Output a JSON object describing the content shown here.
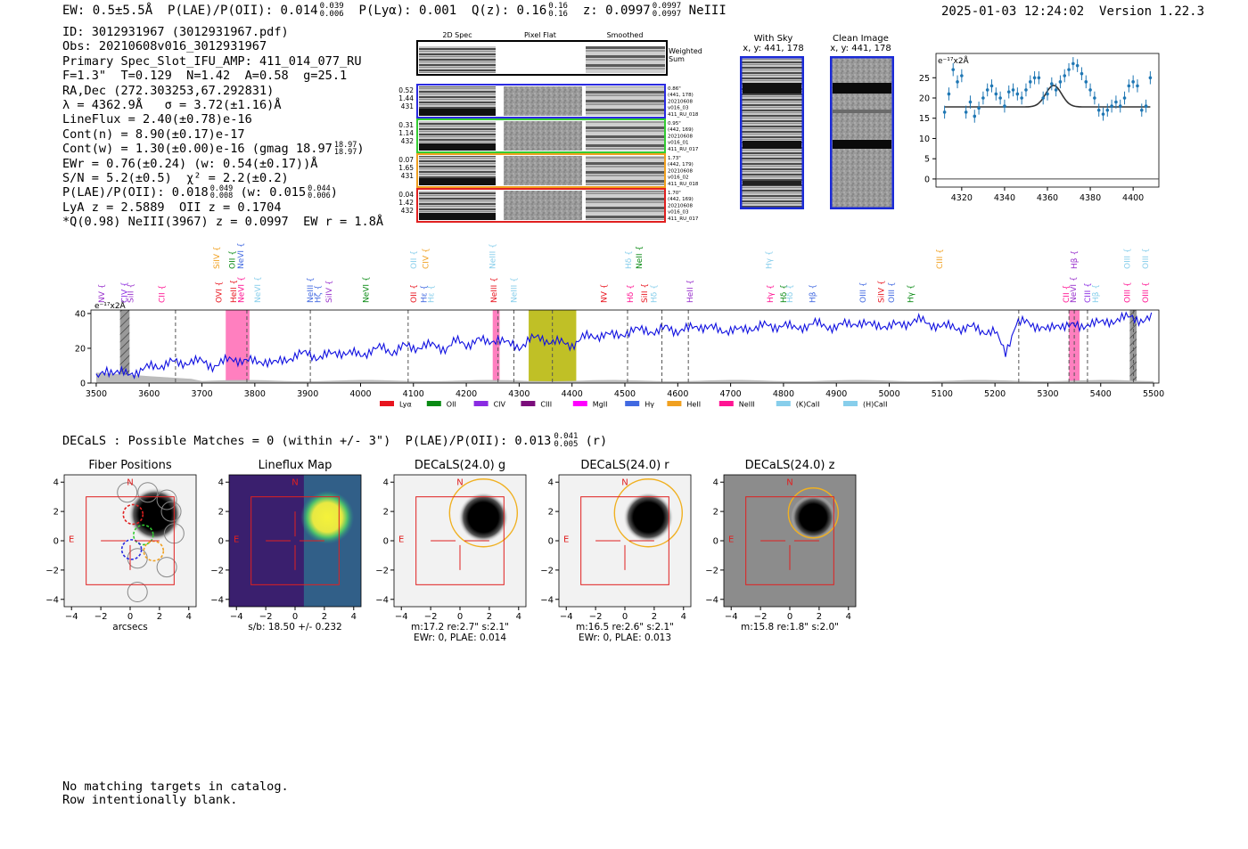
{
  "header": {
    "ew": "EW: 0.5±5.5Å",
    "plae_label": "P(LAE)/P(OII): 0.014",
    "plae_hi": "0.039",
    "plae_lo": "0.006",
    "plya": "P(Lyα): 0.001",
    "q_label": "Q(z): 0.16",
    "q_hi": "0.16",
    "q_lo": "0.16",
    "z_label": "z: 0.0997",
    "z_hi": "0.0997",
    "z_lo": "0.0997",
    "line": "NeIII",
    "timestamp": "2025-01-03 12:24:02",
    "version": "Version 1.22.3"
  },
  "info": {
    "id": "ID: 3012931967 (3012931967.pdf)",
    "obs": "Obs: 20210608v016_3012931967",
    "slot": "Primary Spec_Slot_IFU_AMP: 411_014_077_RU",
    "fwhm": "F=1.3\"  T=0.129  N=1.42  A=0.58  g=25.1",
    "radec": "RA,Dec (272.303253,67.292831)",
    "lambda": "λ = 4362.9Å   σ = 3.72(±1.16)Å",
    "lineflux": "LineFlux = 2.40(±0.78)e-16",
    "contn": "Cont(n) = 8.90(±0.17)e-17",
    "contw": "Cont(w) = 1.30(±0.00)e-16 (gmag 18.97",
    "gmag_hi": "18.97",
    "gmag_lo": "18.97",
    "contw_end": ")",
    "ewr": "EWr = 0.76(±0.24) (w: 0.54(±0.17))Å",
    "sn": "S/N = 5.2(±0.5)  χ² = 2.2(±0.2)",
    "plae": "P(LAE)/P(OII): 0.018",
    "plae_hi": "0.049",
    "plae_lo": "0.008",
    "plae_w": "(w: 0.015",
    "plae_w_hi": "0.044",
    "plae_w_lo": "0.006",
    "plae_end": ")",
    "lya": "LyA z = 2.5889  OII z = 0.1704",
    "q": "*Q(0.98) NeIII(3967) z = 0.0997  EW r = 1.8Å"
  },
  "cutouts": {
    "col_titles": [
      "2D Spec",
      "Pixel Flat",
      "Smoothed"
    ],
    "weighted_sum_label": "Weighted Sum",
    "rows": [
      {
        "color": "#2a2ae0",
        "left": [
          "0.52",
          "1.44",
          "431"
        ],
        "right": [
          "0.86\"",
          "(441, 178)",
          "20210608",
          "v016_03",
          "411_RU_018"
        ]
      },
      {
        "color": "#33cc33",
        "left": [
          "0.31",
          "1.14",
          "432"
        ],
        "right": [
          "0.95\"",
          "(442, 169)",
          "20210608",
          "v016_01",
          "411_RU_017"
        ]
      },
      {
        "color": "#f0a020",
        "left": [
          "0.07",
          "1.65",
          "431"
        ],
        "right": [
          "1.73\"",
          "(442, 179)",
          "20210608",
          "v016_02",
          "411_RU_018"
        ]
      },
      {
        "color": "#e02020",
        "left": [
          "0.04",
          "1.42",
          "432"
        ],
        "right": [
          "1.70\"",
          "(442, 169)",
          "20210608",
          "v016_03",
          "411_RU_017"
        ]
      }
    ]
  },
  "sky": {
    "with_sky_title": "With Sky",
    "with_sky_xy": "x, y: 441, 178",
    "clean_title": "Clean Image",
    "clean_xy": "x, y: 441, 178"
  },
  "zoom_chart": {
    "unit": "e⁻¹⁷x2Å",
    "x_ticks": [
      "4320",
      "4340",
      "4360",
      "4380",
      "4400"
    ],
    "y_ticks": [
      "0",
      "5",
      "10",
      "15",
      "20",
      "25"
    ]
  },
  "full_spectrum": {
    "unit": "e⁻¹⁷x2Å",
    "x_ticks": [
      "3500",
      "3600",
      "3700",
      "3800",
      "3900",
      "4000",
      "4100",
      "4200",
      "4300",
      "4400",
      "4500",
      "4600",
      "4700",
      "4800",
      "4900",
      "5000",
      "5100",
      "5200",
      "5300",
      "5400",
      "5500"
    ],
    "y_ticks": [
      "0",
      "20",
      "40"
    ],
    "legend": [
      {
        "label": "Lyα",
        "color": "#e8141e"
      },
      {
        "label": "OII",
        "color": "#0a8a14"
      },
      {
        "label": "CIV",
        "color": "#8a2be2"
      },
      {
        "label": "CIII",
        "color": "#7b0d7b"
      },
      {
        "label": "MgII",
        "color": "#ff00ff"
      },
      {
        "label": "Hγ",
        "color": "#4169e1"
      },
      {
        "label": "HeII",
        "color": "#f0a020"
      },
      {
        "label": "NeIII",
        "color": "#ff1493"
      },
      {
        "label": "(K)CaII",
        "color": "#87ceeb"
      },
      {
        "label": "(H)CaII",
        "color": "#87ceeb"
      }
    ],
    "line_labels": [
      {
        "text": "NV",
        "x": 3510,
        "row": 2,
        "color": "#9932cc"
      },
      {
        "text": "CIV",
        "x": 3553,
        "row": 2,
        "color": "#8a2be2"
      },
      {
        "text": "SiII",
        "x": 3565,
        "row": 2,
        "color": "#9932cc"
      },
      {
        "text": "CII",
        "x": 3624,
        "row": 2,
        "color": "#ff1493"
      },
      {
        "text": "SiIV",
        "x": 3728,
        "row": 0,
        "color": "#f0a020"
      },
      {
        "text": "OVI",
        "x": 3732,
        "row": 2,
        "color": "#e8141e"
      },
      {
        "text": "OII",
        "x": 3757,
        "row": 0,
        "color": "#0a8a14"
      },
      {
        "text": "HeII",
        "x": 3760,
        "row": 2,
        "color": "#e8141e"
      },
      {
        "text": "NeVI",
        "x": 3773,
        "row": 0,
        "color": "#4169e1"
      },
      {
        "text": "NeVI",
        "x": 3774,
        "row": 2,
        "color": "#ff1493"
      },
      {
        "text": "NeVI",
        "x": 3805,
        "row": 2,
        "color": "#87ceeb"
      },
      {
        "text": "NeIII",
        "x": 3905,
        "row": 2,
        "color": "#4169e1"
      },
      {
        "text": "Hζ",
        "x": 3919,
        "row": 2,
        "color": "#4169e1"
      },
      {
        "text": "SiIV",
        "x": 3940,
        "row": 2,
        "color": "#9932cc"
      },
      {
        "text": "NeVI",
        "x": 4010,
        "row": 2,
        "color": "#0a8a14"
      },
      {
        "text": "OII",
        "x": 4100,
        "row": 0,
        "color": "#87ceeb"
      },
      {
        "text": "CIV",
        "x": 4123,
        "row": 0,
        "color": "#f0a020"
      },
      {
        "text": "OII",
        "x": 4100,
        "row": 2,
        "color": "#e8141e"
      },
      {
        "text": "Hε",
        "x": 4120,
        "row": 2,
        "color": "#4169e1"
      },
      {
        "text": "Hε",
        "x": 4133,
        "row": 2,
        "color": "#87ceeb"
      },
      {
        "text": "NeIII",
        "x": 4250,
        "row": 0,
        "color": "#87ceeb"
      },
      {
        "text": "NeIII",
        "x": 4252,
        "row": 2,
        "color": "#e8141e"
      },
      {
        "text": "NeIII",
        "x": 4290,
        "row": 2,
        "color": "#87ceeb"
      },
      {
        "text": "NV",
        "x": 4460,
        "row": 2,
        "color": "#e8141e"
      },
      {
        "text": "Hδ",
        "x": 4507,
        "row": 0,
        "color": "#87ceeb"
      },
      {
        "text": "NeII",
        "x": 4527,
        "row": 0,
        "color": "#0a8a14"
      },
      {
        "text": "Hδ",
        "x": 4510,
        "row": 2,
        "color": "#ff1493"
      },
      {
        "text": "SiII",
        "x": 4537,
        "row": 2,
        "color": "#e8141e"
      },
      {
        "text": "Hδ",
        "x": 4555,
        "row": 2,
        "color": "#87ceeb"
      },
      {
        "text": "HeII",
        "x": 4623,
        "row": 2,
        "color": "#9932cc"
      },
      {
        "text": "Hγ",
        "x": 4772,
        "row": 0,
        "color": "#87ceeb"
      },
      {
        "text": "Hγ",
        "x": 4775,
        "row": 2,
        "color": "#ff1493"
      },
      {
        "text": "Hδ",
        "x": 4800,
        "row": 2,
        "color": "#0a8a14"
      },
      {
        "text": "Hδ",
        "x": 4812,
        "row": 2,
        "color": "#87ceeb"
      },
      {
        "text": "Hβ",
        "x": 4855,
        "row": 2,
        "color": "#4169e1"
      },
      {
        "text": "OIII",
        "x": 4950,
        "row": 2,
        "color": "#4169e1"
      },
      {
        "text": "SiIV",
        "x": 4985,
        "row": 2,
        "color": "#e8141e"
      },
      {
        "text": "OIII",
        "x": 5004,
        "row": 2,
        "color": "#4169e1"
      },
      {
        "text": "Hγ",
        "x": 5040,
        "row": 2,
        "color": "#0a8a14"
      },
      {
        "text": "CIII",
        "x": 5095,
        "row": 0,
        "color": "#f0a020"
      },
      {
        "text": "CII",
        "x": 5335,
        "row": 2,
        "color": "#ff1493"
      },
      {
        "text": "Hβ",
        "x": 5350,
        "row": 0,
        "color": "#9932cc"
      },
      {
        "text": "NeVI",
        "x": 5348,
        "row": 2,
        "color": "#9932cc"
      },
      {
        "text": "CIII",
        "x": 5375,
        "row": 2,
        "color": "#8a2be2"
      },
      {
        "text": "Hβ",
        "x": 5390,
        "row": 2,
        "color": "#87ceeb"
      },
      {
        "text": "OIII",
        "x": 5450,
        "row": 0,
        "color": "#87ceeb"
      },
      {
        "text": "OIII",
        "x": 5450,
        "row": 2,
        "color": "#ff1493"
      },
      {
        "text": "OIII",
        "x": 5485,
        "row": 0,
        "color": "#87ceeb"
      },
      {
        "text": "OIII",
        "x": 5485,
        "row": 2,
        "color": "#ff1493"
      }
    ]
  },
  "decals": {
    "summary": "DECaLS : Possible Matches = 0 (within +/- 3\")  P(LAE)/P(OII): 0.013",
    "summary_hi": "0.041",
    "summary_lo": "0.005",
    "summary_end": "(r)",
    "ticks": [
      "−4",
      "−2",
      "0",
      "2",
      "4"
    ],
    "north": "N",
    "east": "E",
    "panels": [
      {
        "title": "Fiber Positions",
        "captions": [
          "arcsecs"
        ]
      },
      {
        "title": "Lineflux Map",
        "captions": [
          "s/b: 18.50 +/- 0.232"
        ]
      },
      {
        "title": "DECaLS(24.0) g",
        "captions": [
          "m:17.2  re:2.7\"  s:2.1\"",
          "EWr: 0, PLAE: 0.014"
        ]
      },
      {
        "title": "DECaLS(24.0) r",
        "captions": [
          "m:16.5  re:2.6\"  s:2.1\"",
          "EWr: 0, PLAE: 0.013"
        ]
      },
      {
        "title": "DECaLS(24.0) z",
        "captions": [
          "m:15.8  re:1.8\"  s:2.0\""
        ]
      }
    ]
  },
  "footer": {
    "line1": "No matching targets in catalog.",
    "line2": "Row intentionally blank."
  },
  "chart_data": [
    {
      "type": "scatter",
      "title": "",
      "xlabel": "",
      "ylabel": "e⁻¹⁷x2Å",
      "xlim": [
        4308,
        4412
      ],
      "ylim": [
        -2,
        31
      ],
      "x": [
        4312,
        4314,
        4316,
        4318,
        4320,
        4322,
        4324,
        4326,
        4328,
        4330,
        4332,
        4334,
        4336,
        4338,
        4340,
        4342,
        4344,
        4346,
        4348,
        4350,
        4352,
        4354,
        4356,
        4358,
        4360,
        4362,
        4364,
        4366,
        4368,
        4370,
        4372,
        4374,
        4376,
        4378,
        4380,
        4382,
        4384,
        4386,
        4388,
        4390,
        4392,
        4394,
        4396,
        4398,
        4400,
        4402,
        4404,
        4406,
        4408
      ],
      "y": [
        16.5,
        21,
        27,
        24,
        25.5,
        16.5,
        19,
        15.5,
        17.5,
        20,
        22,
        23,
        21,
        20,
        18,
        21.5,
        22,
        21,
        20,
        22,
        24,
        25,
        25,
        20,
        21,
        23.5,
        22,
        24,
        25.5,
        27,
        28.5,
        28,
        26,
        24,
        22,
        20,
        17,
        16,
        17,
        18,
        19,
        18,
        20,
        23,
        24,
        23,
        17,
        18,
        25
      ],
      "model": {
        "continuum": 17.8,
        "peak_x": 4362.9,
        "amplitude": 5.3,
        "sigma": 3.72
      },
      "zero_line": 0
    },
    {
      "type": "line",
      "title": "",
      "xlabel": "",
      "ylabel": "e⁻¹⁷x2Å",
      "xlim": [
        3490,
        5510
      ],
      "ylim": [
        0,
        42
      ],
      "x": [
        3500,
        3520,
        3540,
        3560,
        3580,
        3600,
        3620,
        3640,
        3660,
        3680,
        3700,
        3720,
        3740,
        3760,
        3780,
        3800,
        3820,
        3840,
        3860,
        3880,
        3900,
        3920,
        3940,
        3960,
        3980,
        4000,
        4020,
        4040,
        4060,
        4080,
        4100,
        4120,
        4140,
        4160,
        4180,
        4200,
        4220,
        4240,
        4260,
        4280,
        4300,
        4320,
        4340,
        4360,
        4380,
        4400,
        4420,
        4440,
        4460,
        4480,
        4500,
        4520,
        4540,
        4560,
        4580,
        4600,
        4620,
        4640,
        4660,
        4680,
        4700,
        4720,
        4740,
        4760,
        4780,
        4800,
        4820,
        4840,
        4860,
        4880,
        4900,
        4920,
        4940,
        4960,
        4980,
        5000,
        5020,
        5040,
        5060,
        5080,
        5100,
        5120,
        5140,
        5160,
        5180,
        5200,
        5220,
        5240,
        5260,
        5280,
        5300,
        5320,
        5340,
        5360,
        5380,
        5400,
        5420,
        5440,
        5460,
        5480,
        5500
      ],
      "y": [
        2,
        8,
        6,
        5,
        7,
        9,
        10,
        12,
        11,
        13,
        12,
        10,
        12,
        14,
        13,
        12,
        13,
        11,
        14,
        16,
        17,
        15,
        16,
        18,
        17,
        16,
        19,
        20,
        18,
        21,
        20,
        22,
        21,
        20,
        24,
        22,
        25,
        23,
        26,
        22,
        21,
        25,
        26,
        24,
        23,
        22,
        26,
        27,
        28,
        27,
        29,
        30,
        31,
        29,
        32,
        30,
        31,
        33,
        32,
        30,
        31,
        30,
        32,
        33,
        32,
        34,
        31,
        33,
        34,
        33,
        32,
        34,
        35,
        33,
        34,
        32,
        34,
        35,
        36,
        34,
        32,
        33,
        31,
        32,
        30,
        29,
        18,
        34,
        35,
        33,
        30,
        34,
        33,
        32,
        35,
        34,
        36,
        37,
        38,
        36,
        37
      ],
      "shaded_regions": [
        {
          "x0": 3545,
          "x1": 3563,
          "color": "#aaaaaa",
          "hatch": true
        },
        {
          "x0": 3745,
          "x1": 3790,
          "color": "#ff69b4"
        },
        {
          "x0": 4250,
          "x1": 4263,
          "color": "#ff69b4"
        },
        {
          "x0": 4318,
          "x1": 4408,
          "color": "#b5b500"
        },
        {
          "x0": 5340,
          "x1": 5360,
          "color": "#ff69b4"
        },
        {
          "x0": 5455,
          "x1": 5468,
          "color": "#aaaaaa",
          "hatch": true
        }
      ],
      "dashed_lines": [
        3650,
        3785,
        3905,
        4090,
        4260,
        4290,
        4362.9,
        4505,
        4570,
        4620,
        5245,
        5340,
        5350,
        5375,
        5462
      ]
    }
  ]
}
